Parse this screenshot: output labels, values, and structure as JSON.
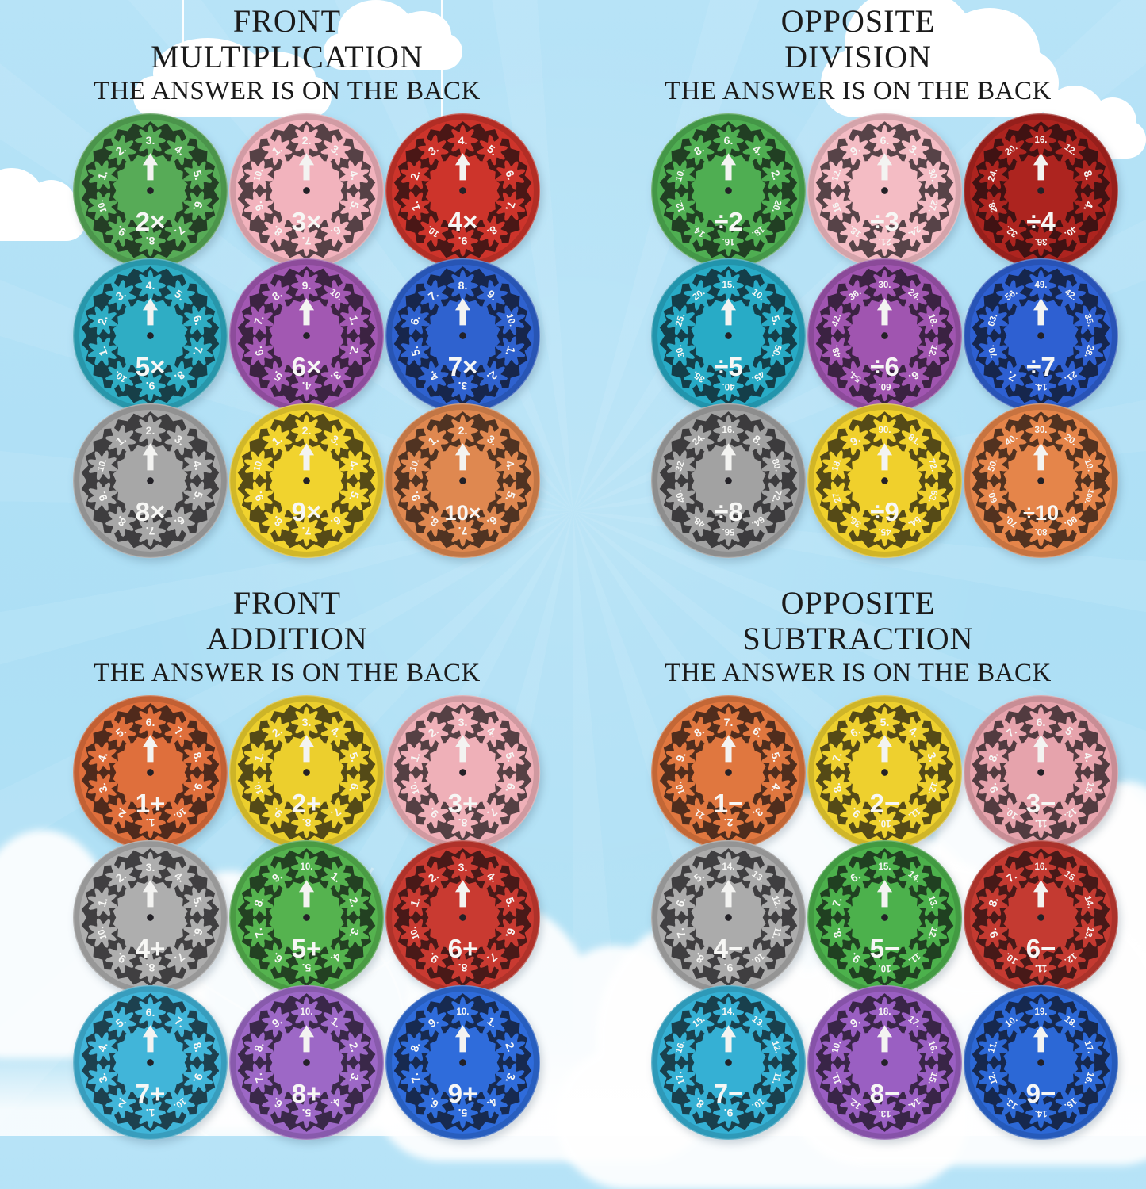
{
  "background": {
    "sky": "#b7e3f7",
    "cloud": "#ffffff",
    "title_color": "#1b1b1b"
  },
  "icons": [
    "up-arrow-icon",
    "center-dot",
    "hanging-string",
    "cloud",
    "ferris-wheel"
  ],
  "quadrants": [
    {
      "id": "multiplication",
      "title_line1": "FRONT",
      "title_line2": "MULTIPLICATION",
      "subtitle": "THE ANSWER IS ON THE BACK",
      "wheels": [
        {
          "label": "2×",
          "color": "#57ab57",
          "numbers": [
            3,
            4,
            5,
            6,
            7,
            8,
            9,
            10,
            1,
            2
          ]
        },
        {
          "label": "3×",
          "color": "#f2b3bd",
          "numbers": [
            2,
            3,
            4,
            5,
            6,
            7,
            8,
            9,
            10,
            1
          ]
        },
        {
          "label": "4×",
          "color": "#cd342b",
          "numbers": [
            4,
            5,
            6,
            7,
            8,
            9,
            10,
            1,
            2,
            3
          ]
        },
        {
          "label": "5×",
          "color": "#2fadc4",
          "numbers": [
            4,
            5,
            6,
            7,
            8,
            9,
            10,
            1,
            2,
            3
          ]
        },
        {
          "label": "6×",
          "color": "#a258b2",
          "numbers": [
            9,
            10,
            1,
            2,
            3,
            4,
            5,
            6,
            7,
            8
          ]
        },
        {
          "label": "7×",
          "color": "#2f62cf",
          "numbers": [
            8,
            9,
            10,
            1,
            2,
            3,
            4,
            5,
            6,
            7
          ]
        },
        {
          "label": "8×",
          "color": "#a7a7a7",
          "numbers": [
            2,
            3,
            4,
            5,
            6,
            7,
            8,
            9,
            10,
            1
          ]
        },
        {
          "label": "9×",
          "color": "#f1d32e",
          "numbers": [
            2,
            3,
            4,
            5,
            6,
            7,
            8,
            9,
            10,
            1
          ]
        },
        {
          "label": "10×",
          "color": "#df8850",
          "numbers": [
            2,
            3,
            4,
            5,
            6,
            7,
            8,
            9,
            10,
            1
          ]
        }
      ]
    },
    {
      "id": "division",
      "title_line1": "OPPOSITE",
      "title_line2": "DIVISION",
      "subtitle": "THE ANSWER IS ON THE BACK",
      "wheels": [
        {
          "label": "÷2",
          "color": "#4fae52",
          "numbers": [
            6,
            4,
            2,
            20,
            18,
            16,
            14,
            12,
            10,
            8
          ]
        },
        {
          "label": "÷3",
          "color": "#f4bcc4",
          "numbers": [
            6,
            3,
            30,
            27,
            24,
            21,
            18,
            15,
            12,
            9
          ]
        },
        {
          "label": "÷4",
          "color": "#ad241f",
          "numbers": [
            16,
            12,
            8,
            4,
            40,
            36,
            32,
            28,
            24,
            20
          ]
        },
        {
          "label": "÷5",
          "color": "#28abc6",
          "numbers": [
            15,
            10,
            5,
            50,
            45,
            40,
            35,
            30,
            25,
            20
          ]
        },
        {
          "label": "÷6",
          "color": "#a055b0",
          "numbers": [
            30,
            24,
            18,
            12,
            6,
            60,
            54,
            48,
            42,
            36
          ]
        },
        {
          "label": "÷7",
          "color": "#2e60d2",
          "numbers": [
            49,
            42,
            35,
            28,
            21,
            14,
            7,
            70,
            63,
            56
          ]
        },
        {
          "label": "÷8",
          "color": "#a2a2a2",
          "numbers": [
            16,
            8,
            80,
            72,
            64,
            56,
            48,
            40,
            32,
            24
          ]
        },
        {
          "label": "÷9",
          "color": "#f0d02c",
          "numbers": [
            90,
            81,
            72,
            63,
            54,
            45,
            36,
            27,
            18,
            9
          ]
        },
        {
          "label": "÷10",
          "color": "#e5854a",
          "numbers": [
            30,
            20,
            10,
            100,
            90,
            80,
            70,
            60,
            50,
            40
          ]
        }
      ]
    },
    {
      "id": "addition",
      "title_line1": "FRONT",
      "title_line2": "ADDITION",
      "subtitle": "THE ANSWER IS ON THE BACK",
      "wheels": [
        {
          "label": "1+",
          "color": "#df6f3c",
          "numbers": [
            6,
            7,
            8,
            9,
            10,
            1,
            2,
            3,
            4,
            5
          ]
        },
        {
          "label": "2+",
          "color": "#eccf2d",
          "numbers": [
            3,
            4,
            5,
            6,
            7,
            8,
            9,
            10,
            1,
            2
          ]
        },
        {
          "label": "3+",
          "color": "#efb0b8",
          "numbers": [
            3,
            4,
            5,
            6,
            7,
            8,
            9,
            10,
            1,
            2
          ]
        },
        {
          "label": "4+",
          "color": "#aeaeae",
          "numbers": [
            3,
            4,
            5,
            6,
            7,
            8,
            9,
            10,
            1,
            2
          ]
        },
        {
          "label": "5+",
          "color": "#55b34f",
          "numbers": [
            10,
            1,
            2,
            3,
            4,
            5,
            6,
            7,
            8,
            9
          ]
        },
        {
          "label": "6+",
          "color": "#c93a31",
          "numbers": [
            3,
            4,
            5,
            6,
            7,
            8,
            9,
            10,
            1,
            2
          ]
        },
        {
          "label": "7+",
          "color": "#41b5d9",
          "numbers": [
            6,
            7,
            8,
            9,
            10,
            1,
            2,
            3,
            4,
            5
          ]
        },
        {
          "label": "8+",
          "color": "#9d68c6",
          "numbers": [
            10,
            1,
            2,
            3,
            4,
            5,
            6,
            7,
            8,
            9
          ]
        },
        {
          "label": "9+",
          "color": "#2f6cdb",
          "numbers": [
            10,
            1,
            2,
            3,
            4,
            5,
            6,
            7,
            8,
            9
          ]
        }
      ]
    },
    {
      "id": "subtraction",
      "title_line1": "OPPOSITE",
      "title_line2": "SUBTRACTION",
      "subtitle": "THE ANSWER IS ON THE BACK",
      "wheels": [
        {
          "label": "1−",
          "color": "#e0773f",
          "numbers": [
            7,
            6,
            5,
            4,
            3,
            2,
            11,
            10,
            9,
            8
          ]
        },
        {
          "label": "2−",
          "color": "#eed02e",
          "numbers": [
            5,
            4,
            3,
            12,
            11,
            10,
            9,
            8,
            7,
            6
          ]
        },
        {
          "label": "3−",
          "color": "#e6a3ac",
          "numbers": [
            6,
            5,
            4,
            13,
            12,
            11,
            10,
            9,
            8,
            7
          ]
        },
        {
          "label": "4−",
          "color": "#ababab",
          "numbers": [
            14,
            13,
            12,
            11,
            10,
            9,
            8,
            7,
            6,
            5
          ]
        },
        {
          "label": "5−",
          "color": "#4cb14c",
          "numbers": [
            15,
            14,
            13,
            12,
            11,
            10,
            9,
            8,
            7,
            6
          ]
        },
        {
          "label": "6−",
          "color": "#c43a31",
          "numbers": [
            16,
            15,
            14,
            13,
            12,
            11,
            10,
            9,
            8,
            7
          ]
        },
        {
          "label": "7−",
          "color": "#35b0d4",
          "numbers": [
            14,
            13,
            12,
            11,
            10,
            9,
            8,
            17,
            16,
            15
          ]
        },
        {
          "label": "8−",
          "color": "#9a5fc2",
          "numbers": [
            18,
            17,
            16,
            15,
            14,
            13,
            12,
            11,
            10,
            9
          ]
        },
        {
          "label": "9−",
          "color": "#2c68d6",
          "numbers": [
            19,
            18,
            17,
            16,
            15,
            14,
            13,
            12,
            11,
            10
          ]
        }
      ]
    }
  ]
}
